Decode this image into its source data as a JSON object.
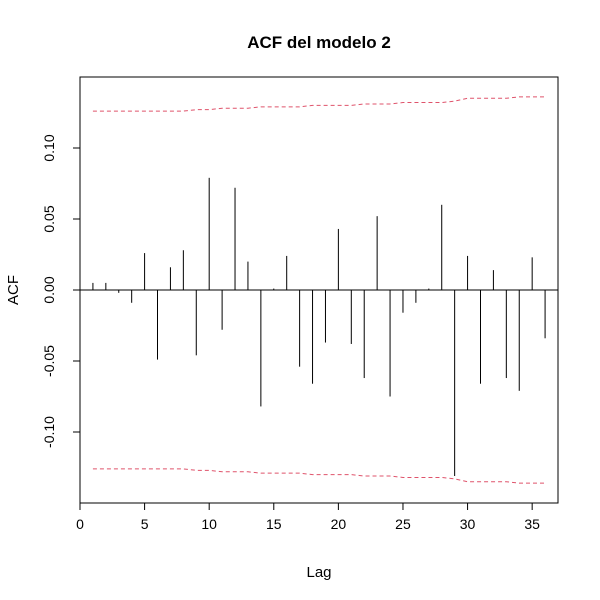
{
  "chart_data": {
    "type": "bar",
    "title": "ACF del modelo 2",
    "xlabel": "Lag",
    "ylabel": "ACF",
    "xlim": [
      0,
      37
    ],
    "ylim": [
      -0.15,
      0.15
    ],
    "xticks": [
      0,
      5,
      10,
      15,
      20,
      25,
      30,
      35
    ],
    "yticks": [
      -0.1,
      -0.05,
      0.0,
      0.05,
      0.1
    ],
    "ytick_labels": [
      "-0.10",
      "-0.05",
      "0.00",
      "0.05",
      "0.10"
    ],
    "lags": [
      1,
      2,
      3,
      4,
      5,
      6,
      7,
      8,
      9,
      10,
      11,
      12,
      13,
      14,
      15,
      16,
      17,
      18,
      19,
      20,
      21,
      22,
      23,
      24,
      25,
      26,
      27,
      28,
      29,
      30,
      31,
      32,
      33,
      34,
      35,
      36
    ],
    "values": [
      0.005,
      0.005,
      -0.002,
      -0.009,
      0.026,
      -0.049,
      0.016,
      0.028,
      -0.046,
      0.079,
      -0.028,
      0.072,
      0.02,
      -0.082,
      0.001,
      0.024,
      -0.054,
      -0.066,
      -0.037,
      0.043,
      -0.038,
      -0.062,
      0.052,
      -0.075,
      -0.016,
      -0.009,
      0.001,
      0.06,
      -0.131,
      0.024,
      -0.066,
      0.014,
      -0.062,
      -0.071,
      0.023,
      -0.034
    ],
    "ci_lower": [
      -0.126,
      -0.126,
      -0.126,
      -0.126,
      -0.126,
      -0.126,
      -0.126,
      -0.126,
      -0.127,
      -0.127,
      -0.128,
      -0.128,
      -0.128,
      -0.129,
      -0.129,
      -0.129,
      -0.129,
      -0.13,
      -0.13,
      -0.13,
      -0.13,
      -0.131,
      -0.131,
      -0.131,
      -0.132,
      -0.132,
      -0.132,
      -0.132,
      -0.133,
      -0.135,
      -0.135,
      -0.135,
      -0.135,
      -0.136,
      -0.136,
      -0.136
    ],
    "ci_upper": [
      0.126,
      0.126,
      0.126,
      0.126,
      0.126,
      0.126,
      0.126,
      0.126,
      0.127,
      0.127,
      0.128,
      0.128,
      0.128,
      0.129,
      0.129,
      0.129,
      0.129,
      0.13,
      0.13,
      0.13,
      0.13,
      0.131,
      0.131,
      0.131,
      0.132,
      0.132,
      0.132,
      0.132,
      0.133,
      0.135,
      0.135,
      0.135,
      0.135,
      0.136,
      0.136,
      0.136
    ],
    "bar_color": "#000000",
    "ci_color": "#df536b",
    "grid": false
  }
}
